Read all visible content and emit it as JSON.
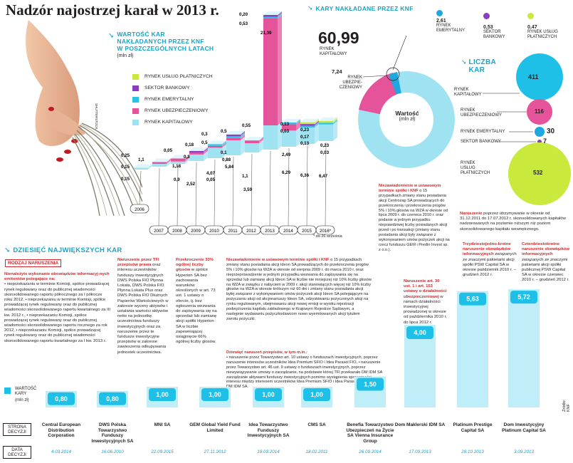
{
  "title": "Nadzór najostrzej karał w 2013 r.",
  "colors": {
    "cyan": "#2ac3e5",
    "pink": "#e5549b",
    "purple": "#8a3fc0",
    "lime": "#c9ea3c",
    "light_blue": "#9fe3f3",
    "red": "#d4272c"
  },
  "hand_credit": "SHUTTERSTOCK",
  "yearly": {
    "title_lines": [
      "WARTOŚĆ KAR",
      "NAKŁADANYCH PRZEZ KNF",
      "W POSZCZEGÓLNYCH LATACH"
    ],
    "unit": "(mln zł)",
    "legend": [
      "RYNEK USŁUG PŁATNICZYCH",
      "SEKTOR BANKOWY",
      "RYNEK EMERYTALNY",
      "RYNEK UBEZPIECZENIOWY",
      "RYNEK KAPITAŁOWY"
    ],
    "note": "* do 26 września"
  },
  "chart_data": {
    "type": "bar",
    "stacked": true,
    "title": "Wartość kar nakładanych przez KNF w poszczególnych latach",
    "ylabel": "mln zł",
    "categories": [
      "2006",
      "2007",
      "2008",
      "2009",
      "2010",
      "2011",
      "2012",
      "2013",
      "2014",
      "2015",
      "2016*"
    ],
    "series": [
      {
        "name": "RYNEK KAPITAŁOWY",
        "values": [
          0.15,
          1.1,
          0.9,
          2.52,
          4.07,
          5.84,
          3.59,
          39.0,
          6.29,
          6.36,
          6.47
        ]
      },
      {
        "name": "RYNEK UBEZPIECZENIOWY",
        "values": [
          0,
          0.05,
          1.18,
          0.3,
          0.05,
          0.88,
          1.1,
          21.39,
          2.49,
          0,
          0
        ]
      },
      {
        "name": "RYNEK EMERYTALNY",
        "values": [
          0,
          0,
          0,
          0,
          0.5,
          0.1,
          0,
          0.53,
          0.03,
          0.13,
          0.03
        ]
      },
      {
        "name": "SEKTOR BANKOWY",
        "values": [
          0,
          0,
          0,
          0.18,
          0,
          0.5,
          0,
          0.2,
          0,
          0.17,
          0
        ]
      },
      {
        "name": "RYNEK USŁUG PŁATNICZYCH",
        "values": [
          0,
          0,
          0,
          0,
          0,
          0,
          0,
          0,
          0,
          0.23,
          0.23
        ]
      }
    ],
    "labels": {
      "2006": [
        "0,15",
        "0,15"
      ],
      "2007": [
        "1,1",
        "0,25"
      ],
      "2008": [
        "0,05",
        "1,18",
        "0,9"
      ],
      "2009": [
        "0,18",
        "0,3",
        "2,52"
      ],
      "2010": [
        "0,3",
        "0,5",
        "4,07",
        "0,05"
      ],
      "2011": [
        "0,5",
        "0,1",
        "0,88",
        "5,84"
      ],
      "2012": [
        "0,55",
        "1,1",
        "3,59"
      ],
      "2013": [
        "0,20",
        "0,53",
        "21,39"
      ],
      "2014": [
        "0,13",
        "0,03",
        "2,49",
        "6,29"
      ],
      "2015": [
        "0,23",
        "0,17",
        "0,13",
        "6,36"
      ],
      "2016*": [
        "0,23",
        "0,03",
        "6,47"
      ]
    }
  },
  "donut": {
    "title": "KARY NAKŁADANE PRZEZ KNF",
    "total_value": "60,99",
    "total_label_lines": [
      "RYNEK",
      "KAPITAŁOWY"
    ],
    "ins_value": "7,24",
    "ins_label_lines": [
      "RYNEK",
      "UBEZPIE-",
      "CZENIOWY"
    ],
    "center_lines": [
      "Wartość",
      "(mln zł)"
    ],
    "top": [
      {
        "value": "2,61",
        "label_lines": [
          "RYNEK",
          "EMERYTALNY"
        ],
        "color": "#1fa8e0"
      },
      {
        "value": "0,53",
        "label_lines": [
          "SEKTOR",
          "BANKOWY"
        ],
        "color": "#8a3fc0"
      },
      {
        "value": "0,47",
        "label_lines": [
          "RYNEK USŁUG",
          "PŁATNICZYCH"
        ],
        "color": "#c9ea3c"
      }
    ]
  },
  "counts": {
    "title_lines": [
      "LICZBA",
      "KAR"
    ],
    "items": [
      {
        "label": "RYNEK KAPITAŁOWY",
        "value": "411"
      },
      {
        "label": "RYNEK UBEZPIECZENIOWY",
        "value": "116"
      },
      {
        "label": "RYNEK EMERYTALNY",
        "value": "30"
      },
      {
        "label": "SEKTOR BANKOWY",
        "value": "7"
      },
      {
        "label": "RYNEK USŁUG PŁATNICZYCH",
        "value": "532"
      }
    ]
  },
  "top10": {
    "title": "DZIESIĘĆ NAJWIĘKSZYCH KAR",
    "rodzaj": "RODZAJ NARUSZENIA",
    "legend_value": "WARTOŚĆ KARY",
    "legend_unit": "(mln zł)",
    "row_strona": "STRONA DECYZJI",
    "row_data": "DATA DECYZJI",
    "items": [
      {
        "value": "0,80",
        "name": "Central European Distribution Corporation",
        "date": "4.03.2014"
      },
      {
        "value": "0,80",
        "name": "DWS Polska Towarzystwo Funduszy Inwestycyjnych SA",
        "date": "16.06.2010"
      },
      {
        "value": "1,00",
        "name": "MNI SA",
        "date": "22.09.2015"
      },
      {
        "value": "1,00",
        "name": "GEM Global Yield Fund Limited",
        "date": "27.11.2012"
      },
      {
        "value": "1,00",
        "name": "Idea Towarzystwo Funduszy Inwestycyjnych SA",
        "date": "18.03.2014"
      },
      {
        "value": "1,00",
        "name": "CMS SA",
        "date": "18.02.2011"
      },
      {
        "value": "1,50",
        "name": "Benefia Towarzystwo Ubezpieczeń na Życie SA Vienna Insurance Group",
        "date": "26.09.2014"
      },
      {
        "value": "4,00",
        "name": "Dom Maklerski IDM SA",
        "date": "17.09.2013"
      },
      {
        "value": "5,63",
        "name": "Platinum Prestige Capital SA",
        "date": "29.10.2013"
      },
      {
        "value": "5,72",
        "name": "Dom Inwestycyjny Platinum Capital SA",
        "date": "3.09.2013"
      }
    ],
    "descriptions": {
      "d1_head": "Nienależyte wykonanie obowiązków informacyj-nych emitentów polegające na:",
      "d1_body": "• nieprzekazaniu w terminie Komisji, spółce prowadzącej rynek regulowany oraz do publicznej wiadomości skonsolidowanego raportu półrocznego za I półrocze roku 2012, • nieprzekazaniu w terminie Komisji, spółce prowadzącej rynek regulowany oraz do publicznej wiadomości skonsolidowanego raportu kwartalnego za III kw. 2012 r., • nieprzekazaniu Komisji, spółce prowadzącej rynek regulowany oraz do publicznej wiadomości skonsolidowanego raportu rocznego za rok 2012, • nieprzekazaniu Komisji, spółce prowadzącej rynek regulowany oraz do publicznej wiadomości skonsolidowanego raportu kwartalnego za I kw. 2013 r.",
      "d2_head": "Naruszenie przez TFI przepisów prawa",
      "d2_body": "oraz interesu uczestników funduszy inwestycyjnych DWS Polska FIO Płynna Lokata, DWS Polska FIO Płynna Lokata Plus oraz DWS Polska FIO Dłużnych Papierów Wartościowych w zakresie wyceny aktywów i ustalania wartości aktywów netto na jednostkę uczestnictwa funduszy inwestycyjnych oraz za naruszenie przez te fundusze inwestycyjne przepisów w zakresie zawieszenia odkupywania jednostek uczestnictwa.",
      "d3_head": "Przekroczenie 33% ogólnej liczby głosów",
      "d3_body": "w spółce Hyperion SA bez zachowania warunków określonych w art. 73 ust. 1 ustawy o ofercie, tj. bez ogłoszenia wezwania do zapisywania się na sprzedaż lub zamianę akcji spółki Hyperion SA w liczbie zapewniającej osiągnięcie 66% ogólnej liczby głosów.",
      "d4_head": "Niezawiadomienie w ustawowym terminie spółki i KNF",
      "d4_body": "o 15 przypadkach zmiany stanu posiadania akcji Ideon SA prowadzących do przekroczenia progów 5% i 10% głosów na WZA w okresie od sierpnia 2009 r. do marca 2010 r. oraz nieprzeprowadzenie w jednym przypadku wezwania do zapisywania się na sprzedaż lub zamianę akcji Ideon SA w liczbie nie mniejszej niż 10% liczby głosów na WZA w związku z nabyciem w 2009 r. akcji stanowiących więcej niż 10% liczby głosów na WZA w okresie krótszym niż 60 dni i zmiany stanu posiadania akcji byłej związane z wykonywaniem umów pożyczek akcji Ideon SA polegającym na pożyczaniu akcji od akcjonariuszy Ideon SA, odzyskiwaniu pożyczonych akcji na rynku regulowanym, obejmowaniu akcji nowej emisji w wyniku rejestracji podwyższenia kapitału zakładowego w Krajowym Rejestrze Sądowym, a następnie wydawaniu pożyczkodawcom nowo wyemitowanych akcji tytułem zwrotu pożyczki.",
      "d5_head": "Dziewięć naruszeń przepisów, w tym m.in.:",
      "d5_body": "• naruszenie przez Towarzystwo art. 10 ustawy o funduszach inwestycyjnych, poprzez naruszenie interesów uczestników Idea Premium SFIO i Idea Parasol FIO, • naruszenie przez Towarzystwo art. 46 ust. 9 ustawy o funduszach inwestycyjnych, poprzez niewywiązywanie umowy o zarządzanie, na podstawie której TFI przekazało DM IDM SA zarządzanie aktywami funduszy inwestycyjnych pomimo wystąpienia sprzeczności interesu między interesem uczestników Idea Premium SFIO i Idea Parasol FIO i interesem DM IDM SA.",
      "d6_head": "Niezawiadomienie w ustawowym terminie spółki i KNF",
      "d6_body": "o 15 przypadkach zmiany stanu posiadania akcji Centrozap SA prowadzących do przekroczenia i przekroczenia progów 5% i 10% głosów na WZA w okresie od lipca 2009 r. do czerwca 2010 r. oraz podanie w jednym przypadku nieprawdziwej liczby posiadanych akcji przed i po transakcji (zmiany stanu posiadania akcji były związane z wykonywaniem umów pożyczek akcji na rzecz funduszu GEM i Predin Invest sp. z o.o.).",
      "d7_head": "Naruszenie art. 30 ust. 1 i art. 153 ustawy o działalności ubezpieczeniowej",
      "d7_body": "w ramach działalności inwestycyjnej prowadzonej w okresie od października 2010 r. do lipca 2012 r.",
      "d8_head": "Naruszenie",
      "d8_body": "poprzez utrzymywanie w okresie od 31.12.2011 do 17.07.2012 r. skonsolidowanych kapitałów nadzorowanych na poziomie niższym niż poziom skonsolidowanego kapitału wewnętrznego.",
      "d9_head": "Trzydziestojedno-krotne naruszenie obowiązków informacyjnych",
      "d9_body": "związanych ze znaczymi pakietami akcji spółki PSW Capital SA w okresie październik 2010 r. – grudzień 2012 r.",
      "d10_head": "Czterdziestokrotne naruszenie obowiązków informacyjnych",
      "d10_body": "związanych ze znaczymi pakietami akcji spółki publicznej PSW Capital SA w okresie czerwiec 2010 r. – grudzień 2012 r."
    }
  },
  "source": "Źródło: KNF"
}
